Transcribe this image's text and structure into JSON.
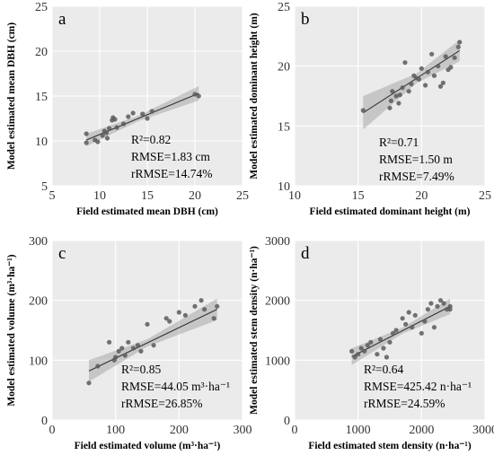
{
  "chart_data": [
    {
      "type": "scatter",
      "label": "a",
      "xlabel": "Field estimated mean DBH (cm)",
      "ylabel": "Model estimated mean DBH (cm)",
      "xlim": [
        5,
        25
      ],
      "ylim": [
        5,
        25
      ],
      "xticks": [
        5,
        10,
        15,
        20,
        25
      ],
      "yticks": [
        5,
        10,
        15,
        20,
        25
      ],
      "stats": [
        "R²=0.82",
        "RMSE=1.83 cm",
        "rRMSE=14.74%"
      ],
      "points": [
        [
          8.6,
          9.8
        ],
        [
          8.6,
          10.8
        ],
        [
          9.5,
          10.1
        ],
        [
          9.8,
          9.9
        ],
        [
          10.3,
          10.6
        ],
        [
          10.5,
          11.1
        ],
        [
          10.7,
          10.9
        ],
        [
          10.8,
          10.3
        ],
        [
          11.0,
          11.4
        ],
        [
          11.3,
          12.3
        ],
        [
          11.4,
          12.6
        ],
        [
          11.6,
          12.4
        ],
        [
          11.8,
          11.5
        ],
        [
          12.5,
          11.9
        ],
        [
          13.0,
          12.7
        ],
        [
          13.5,
          13.1
        ],
        [
          14.5,
          13.0
        ],
        [
          15.0,
          12.5
        ],
        [
          15.5,
          13.3
        ],
        [
          20.0,
          15.2
        ],
        [
          20.4,
          15.0
        ]
      ],
      "fit": [
        [
          8.6,
          10.1
        ],
        [
          20.4,
          15.3
        ]
      ],
      "band_half_width": [
        [
          8.6,
          0.7
        ],
        [
          14.0,
          0.3
        ],
        [
          20.4,
          0.8
        ]
      ]
    },
    {
      "type": "scatter",
      "label": "b",
      "xlabel": "Field estimated dominant height (m)",
      "ylabel": "Model estimated dominant height (m)",
      "xlim": [
        10,
        25
      ],
      "ylim": [
        10,
        25
      ],
      "xticks": [
        10,
        15,
        20,
        25
      ],
      "yticks": [
        10,
        15,
        20,
        25
      ],
      "stats": [
        "R²=0.71",
        "RMSE=1.50 m",
        "rRMSE=7.49%"
      ],
      "points": [
        [
          15.4,
          16.3
        ],
        [
          17.5,
          16.5
        ],
        [
          17.6,
          17.1
        ],
        [
          17.7,
          17.9
        ],
        [
          18.0,
          17.5
        ],
        [
          18.2,
          16.9
        ],
        [
          18.3,
          17.6
        ],
        [
          18.5,
          18.2
        ],
        [
          18.7,
          20.3
        ],
        [
          19.0,
          17.9
        ],
        [
          19.2,
          18.5
        ],
        [
          19.4,
          19.2
        ],
        [
          19.6,
          19.0
        ],
        [
          19.8,
          18.9
        ],
        [
          20.0,
          19.8
        ],
        [
          20.3,
          18.4
        ],
        [
          20.5,
          19.5
        ],
        [
          20.8,
          21.0
        ],
        [
          21.0,
          19.2
        ],
        [
          21.3,
          20.0
        ],
        [
          21.5,
          18.3
        ],
        [
          21.7,
          18.6
        ],
        [
          21.9,
          20.8
        ],
        [
          22.1,
          19.7
        ],
        [
          22.3,
          19.9
        ],
        [
          22.6,
          20.7
        ],
        [
          22.9,
          21.6
        ],
        [
          23.0,
          22.0
        ]
      ],
      "fit": [
        [
          15.4,
          16.1
        ],
        [
          23.0,
          21.3
        ]
      ],
      "band_half_width": [
        [
          15.4,
          1.4
        ],
        [
          19.6,
          0.4
        ],
        [
          23.0,
          0.9
        ]
      ]
    },
    {
      "type": "scatter",
      "label": "c",
      "xlabel": "Field estimated volume (m³·ha⁻¹)",
      "ylabel": "Model estimated volume (m³·ha⁻¹)",
      "xlim": [
        0,
        300
      ],
      "ylim": [
        0,
        300
      ],
      "xticks": [
        0,
        100,
        200,
        300
      ],
      "yticks": [
        0,
        100,
        200,
        300
      ],
      "stats": [
        "R²=0.85",
        "RMSE=44.05 m³·ha⁻¹",
        "rRMSE=26.85%"
      ],
      "points": [
        [
          58,
          62
        ],
        [
          72,
          90
        ],
        [
          90,
          130
        ],
        [
          98,
          100
        ],
        [
          100,
          105
        ],
        [
          105,
          115
        ],
        [
          110,
          120
        ],
        [
          115,
          108
        ],
        [
          120,
          130
        ],
        [
          128,
          120
        ],
        [
          135,
          125
        ],
        [
          140,
          115
        ],
        [
          150,
          160
        ],
        [
          160,
          125
        ],
        [
          180,
          170
        ],
        [
          185,
          165
        ],
        [
          200,
          180
        ],
        [
          210,
          175
        ],
        [
          225,
          190
        ],
        [
          235,
          200
        ],
        [
          240,
          185
        ],
        [
          255,
          170
        ],
        [
          260,
          190
        ]
      ],
      "fit": [
        [
          58,
          82
        ],
        [
          260,
          185
        ]
      ],
      "band_half_width": [
        [
          58,
          18
        ],
        [
          150,
          6
        ],
        [
          260,
          18
        ]
      ]
    },
    {
      "type": "scatter",
      "label": "d",
      "xlabel": "Field estimated stem density (n·ha⁻¹)",
      "ylabel": "Model estimated stem density (n·ha⁻¹)",
      "xlim": [
        0,
        3000
      ],
      "ylim": [
        0,
        3000
      ],
      "xticks": [
        0,
        1000,
        2000,
        3000
      ],
      "yticks": [
        0,
        1000,
        2000,
        3000
      ],
      "stats": [
        "R²=0.64",
        "RMSE=425.42 n·ha⁻¹",
        "rRMSE=24.59%"
      ],
      "points": [
        [
          900,
          1150
        ],
        [
          950,
          1050
        ],
        [
          1000,
          1100
        ],
        [
          1050,
          1200
        ],
        [
          1100,
          1150
        ],
        [
          1150,
          1250
        ],
        [
          1200,
          1300
        ],
        [
          1300,
          1100
        ],
        [
          1350,
          1350
        ],
        [
          1400,
          1200
        ],
        [
          1450,
          1050
        ],
        [
          1500,
          1300
        ],
        [
          1550,
          1450
        ],
        [
          1600,
          1500
        ],
        [
          1700,
          1700
        ],
        [
          1750,
          1600
        ],
        [
          1800,
          1800
        ],
        [
          1850,
          1550
        ],
        [
          1900,
          1750
        ],
        [
          2000,
          1450
        ],
        [
          2050,
          1650
        ],
        [
          2100,
          1850
        ],
        [
          2150,
          1950
        ],
        [
          2200,
          1550
        ],
        [
          2250,
          1900
        ],
        [
          2300,
          2000
        ],
        [
          2350,
          1950
        ],
        [
          2400,
          1850
        ],
        [
          2450,
          1850
        ],
        [
          2450,
          1900
        ]
      ],
      "fit": [
        [
          900,
          1060
        ],
        [
          2450,
          1900
        ]
      ],
      "band_half_width": [
        [
          900,
          140
        ],
        [
          1700,
          50
        ],
        [
          2450,
          130
        ]
      ]
    }
  ]
}
